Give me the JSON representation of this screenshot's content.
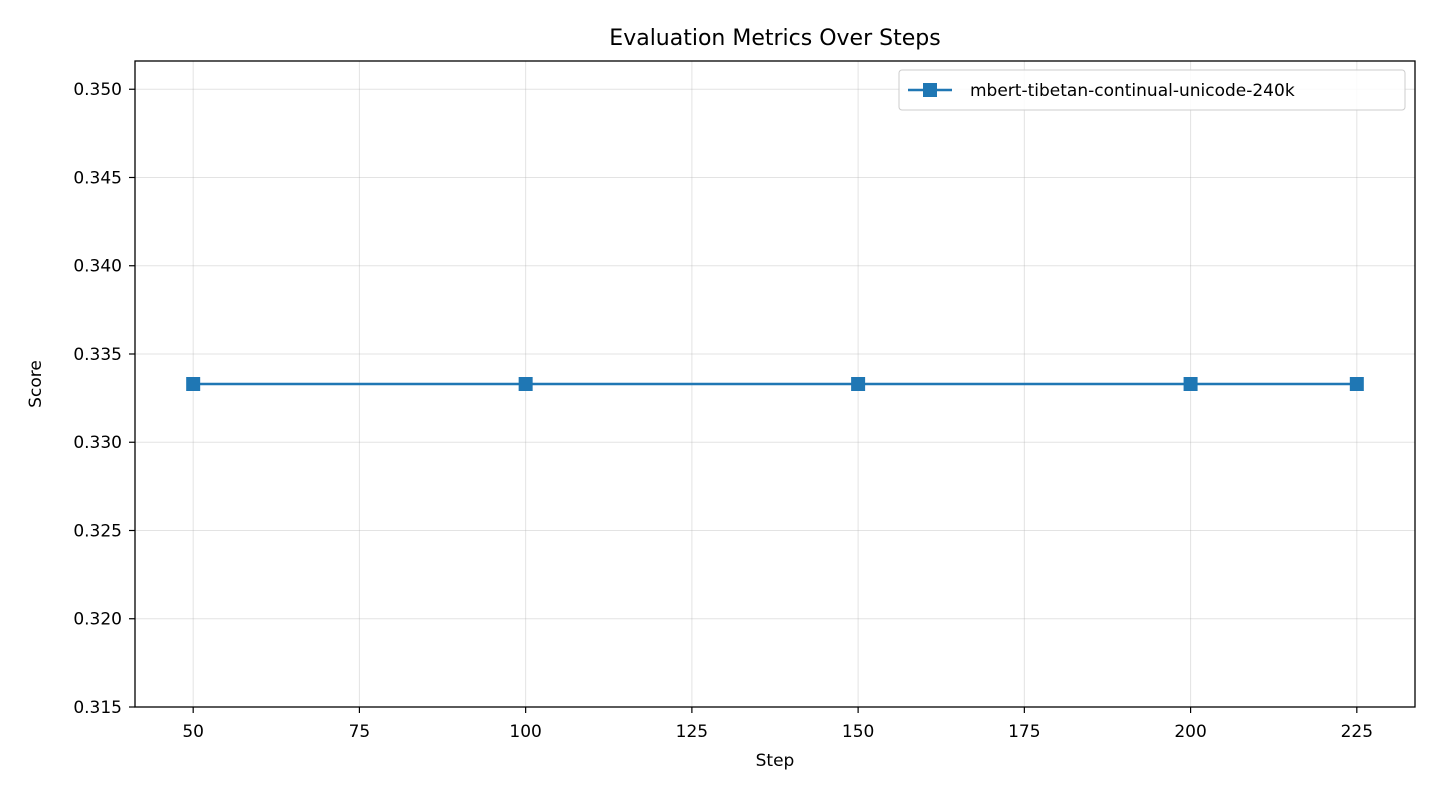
{
  "chart_data": {
    "type": "line",
    "title": "Evaluation Metrics Over Steps",
    "xlabel": "Step",
    "ylabel": "Score",
    "xlim": [
      41.25,
      233.75
    ],
    "ylim": [
      0.315,
      0.3516
    ],
    "x_ticks": [
      50,
      75,
      100,
      125,
      150,
      175,
      200,
      225
    ],
    "y_ticks": [
      0.315,
      0.32,
      0.325,
      0.33,
      0.335,
      0.34,
      0.345,
      0.35
    ],
    "y_tick_labels": [
      "0.315",
      "0.320",
      "0.325",
      "0.330",
      "0.335",
      "0.340",
      "0.345",
      "0.350"
    ],
    "grid": true,
    "legend": "top-right",
    "series": [
      {
        "name": "mbert-tibetan-continual-unicode-240k",
        "color": "#1f77b4",
        "marker": "square",
        "x": [
          50,
          100,
          150,
          200,
          225
        ],
        "y": [
          0.3333,
          0.3333,
          0.3333,
          0.3333,
          0.3333
        ]
      }
    ]
  }
}
